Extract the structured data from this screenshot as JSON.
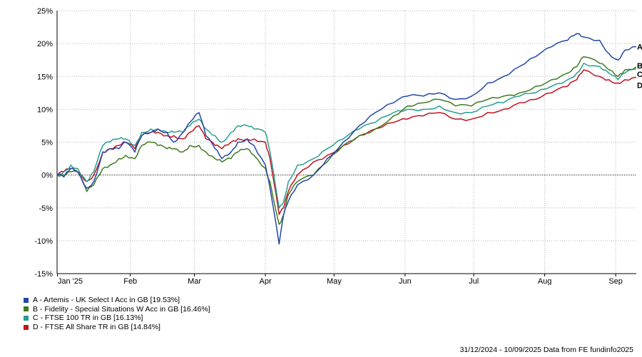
{
  "chart_data": {
    "type": "line",
    "ylim": [
      -15,
      25
    ],
    "y_ticks": [
      -15,
      -10,
      -5,
      0,
      5,
      10,
      15,
      20,
      25
    ],
    "y_tick_labels": [
      "-15%",
      "-10%",
      "-5%",
      "0%",
      "5%",
      "10%",
      "15%",
      "20%",
      "25%"
    ],
    "x_tick_labels": [
      "Jan '25",
      "Feb",
      "Mar",
      "Apr",
      "May",
      "Jun",
      "Jul",
      "Aug",
      "Sep"
    ],
    "x_tick_dates": [
      "2024-12-31",
      "2025-02-01",
      "2025-03-01",
      "2025-04-01",
      "2025-05-01",
      "2025-06-01",
      "2025-07-01",
      "2025-08-01",
      "2025-09-01"
    ],
    "x_range": [
      "2024-12-31",
      "2025-09-10"
    ],
    "grid": true,
    "zero_line": "dotted",
    "series": [
      {
        "name": "A - Artemis - UK Select I Acc in GB [19.53%]",
        "end_label": "A",
        "color": "#2347a8",
        "points": [
          [
            "2024-12-31",
            0
          ],
          [
            "2025-01-03",
            -0.3
          ],
          [
            "2025-01-06",
            1
          ],
          [
            "2025-01-09",
            0.5
          ],
          [
            "2025-01-13",
            -2
          ],
          [
            "2025-01-16",
            -1
          ],
          [
            "2025-01-20",
            3.5
          ],
          [
            "2025-01-23",
            4
          ],
          [
            "2025-01-27",
            4
          ],
          [
            "2025-01-30",
            5
          ],
          [
            "2025-02-03",
            3.5
          ],
          [
            "2025-02-06",
            6
          ],
          [
            "2025-02-10",
            6.5
          ],
          [
            "2025-02-13",
            7
          ],
          [
            "2025-02-17",
            6.5
          ],
          [
            "2025-02-20",
            5
          ],
          [
            "2025-02-24",
            6.5
          ],
          [
            "2025-02-27",
            8
          ],
          [
            "2025-03-03",
            9.5
          ],
          [
            "2025-03-06",
            6
          ],
          [
            "2025-03-10",
            4
          ],
          [
            "2025-03-13",
            2.5
          ],
          [
            "2025-03-17",
            3.5
          ],
          [
            "2025-03-20",
            5
          ],
          [
            "2025-03-24",
            5.5
          ],
          [
            "2025-03-27",
            4.5
          ],
          [
            "2025-04-01",
            1.5
          ],
          [
            "2025-04-03",
            -2
          ],
          [
            "2025-04-07",
            -10.5
          ],
          [
            "2025-04-09",
            -6
          ],
          [
            "2025-04-11",
            -4
          ],
          [
            "2025-04-15",
            -1.5
          ],
          [
            "2025-04-22",
            0
          ],
          [
            "2025-04-28",
            2.5
          ],
          [
            "2025-05-05",
            5
          ],
          [
            "2025-05-12",
            7.5
          ],
          [
            "2025-05-19",
            9.5
          ],
          [
            "2025-05-27",
            11
          ],
          [
            "2025-06-02",
            12
          ],
          [
            "2025-06-09",
            12
          ],
          [
            "2025-06-16",
            12.5
          ],
          [
            "2025-06-23",
            11.5
          ],
          [
            "2025-06-30",
            12
          ],
          [
            "2025-07-07",
            14
          ],
          [
            "2025-07-14",
            15
          ],
          [
            "2025-07-21",
            16.5
          ],
          [
            "2025-07-28",
            18
          ],
          [
            "2025-08-04",
            19.5
          ],
          [
            "2025-08-11",
            20.5
          ],
          [
            "2025-08-15",
            21.5
          ],
          [
            "2025-08-18",
            21
          ],
          [
            "2025-08-25",
            20.5
          ],
          [
            "2025-08-29",
            18.5
          ],
          [
            "2025-09-02",
            17.5
          ],
          [
            "2025-09-05",
            19
          ],
          [
            "2025-09-10",
            19.53
          ]
        ]
      },
      {
        "name": "B - Fidelity - Special Situations W Acc in GB [16.46%]",
        "end_label": "B",
        "color": "#3f7a1e",
        "points": [
          [
            "2024-12-31",
            0
          ],
          [
            "2025-01-03",
            0
          ],
          [
            "2025-01-06",
            0.5
          ],
          [
            "2025-01-09",
            0.5
          ],
          [
            "2025-01-13",
            -2.5
          ],
          [
            "2025-01-16",
            -1.5
          ],
          [
            "2025-01-20",
            1
          ],
          [
            "2025-01-23",
            1.5
          ],
          [
            "2025-01-27",
            2.5
          ],
          [
            "2025-01-30",
            3
          ],
          [
            "2025-02-03",
            2.5
          ],
          [
            "2025-02-06",
            4.5
          ],
          [
            "2025-02-10",
            5
          ],
          [
            "2025-02-13",
            4.5
          ],
          [
            "2025-02-17",
            4
          ],
          [
            "2025-02-20",
            4
          ],
          [
            "2025-02-24",
            3.5
          ],
          [
            "2025-02-27",
            4.5
          ],
          [
            "2025-03-03",
            4.5
          ],
          [
            "2025-03-06",
            3.5
          ],
          [
            "2025-03-10",
            2.5
          ],
          [
            "2025-03-13",
            2
          ],
          [
            "2025-03-17",
            2.5
          ],
          [
            "2025-03-20",
            3.5
          ],
          [
            "2025-03-24",
            4
          ],
          [
            "2025-03-27",
            3
          ],
          [
            "2025-04-01",
            1
          ],
          [
            "2025-04-03",
            -1
          ],
          [
            "2025-04-07",
            -7.5
          ],
          [
            "2025-04-09",
            -6
          ],
          [
            "2025-04-11",
            -3
          ],
          [
            "2025-04-15",
            -1
          ],
          [
            "2025-04-22",
            0
          ],
          [
            "2025-04-28",
            2
          ],
          [
            "2025-05-05",
            4.5
          ],
          [
            "2025-05-12",
            6
          ],
          [
            "2025-05-19",
            7
          ],
          [
            "2025-05-27",
            9
          ],
          [
            "2025-06-02",
            10.5
          ],
          [
            "2025-06-09",
            11
          ],
          [
            "2025-06-16",
            11.5
          ],
          [
            "2025-06-23",
            10.5
          ],
          [
            "2025-06-30",
            10.5
          ],
          [
            "2025-07-07",
            11.5
          ],
          [
            "2025-07-14",
            12
          ],
          [
            "2025-07-21",
            12.5
          ],
          [
            "2025-07-28",
            13.5
          ],
          [
            "2025-08-04",
            14.5
          ],
          [
            "2025-08-11",
            15.5
          ],
          [
            "2025-08-15",
            16.5
          ],
          [
            "2025-08-18",
            18
          ],
          [
            "2025-08-25",
            17
          ],
          [
            "2025-08-29",
            16
          ],
          [
            "2025-09-02",
            15
          ],
          [
            "2025-09-05",
            16
          ],
          [
            "2025-09-10",
            16.46
          ]
        ]
      },
      {
        "name": "C - FTSE 100 TR in GB [16.13%]",
        "end_label": "C",
        "color": "#2a9d8f",
        "points": [
          [
            "2024-12-31",
            0
          ],
          [
            "2025-01-03",
            0.5
          ],
          [
            "2025-01-06",
            1.5
          ],
          [
            "2025-01-09",
            1
          ],
          [
            "2025-01-13",
            -1
          ],
          [
            "2025-01-16",
            0.5
          ],
          [
            "2025-01-20",
            4.5
          ],
          [
            "2025-01-23",
            5
          ],
          [
            "2025-01-27",
            5.5
          ],
          [
            "2025-01-30",
            5.5
          ],
          [
            "2025-02-03",
            4.5
          ],
          [
            "2025-02-06",
            6.5
          ],
          [
            "2025-02-10",
            7
          ],
          [
            "2025-02-13",
            7
          ],
          [
            "2025-02-17",
            6.5
          ],
          [
            "2025-02-20",
            6.5
          ],
          [
            "2025-02-24",
            6.5
          ],
          [
            "2025-02-27",
            7.5
          ],
          [
            "2025-03-03",
            8.5
          ],
          [
            "2025-03-06",
            7
          ],
          [
            "2025-03-10",
            6
          ],
          [
            "2025-03-13",
            5
          ],
          [
            "2025-03-17",
            6.5
          ],
          [
            "2025-03-20",
            7.5
          ],
          [
            "2025-03-24",
            7.5
          ],
          [
            "2025-03-27",
            7
          ],
          [
            "2025-04-01",
            6.5
          ],
          [
            "2025-04-03",
            3.5
          ],
          [
            "2025-04-07",
            -5
          ],
          [
            "2025-04-09",
            -4
          ],
          [
            "2025-04-11",
            -1
          ],
          [
            "2025-04-15",
            1.5
          ],
          [
            "2025-04-22",
            2.5
          ],
          [
            "2025-04-28",
            4
          ],
          [
            "2025-05-05",
            5.5
          ],
          [
            "2025-05-12",
            7
          ],
          [
            "2025-05-19",
            8
          ],
          [
            "2025-05-27",
            9.5
          ],
          [
            "2025-06-02",
            10
          ],
          [
            "2025-06-09",
            10
          ],
          [
            "2025-06-16",
            10.5
          ],
          [
            "2025-06-23",
            9.5
          ],
          [
            "2025-06-30",
            9.5
          ],
          [
            "2025-07-07",
            10.5
          ],
          [
            "2025-07-14",
            11
          ],
          [
            "2025-07-21",
            12
          ],
          [
            "2025-07-28",
            12.5
          ],
          [
            "2025-08-04",
            13.5
          ],
          [
            "2025-08-11",
            14.5
          ],
          [
            "2025-08-15",
            15.5
          ],
          [
            "2025-08-18",
            17
          ],
          [
            "2025-08-25",
            16.5
          ],
          [
            "2025-08-29",
            15.5
          ],
          [
            "2025-09-02",
            14.5
          ],
          [
            "2025-09-05",
            15.5
          ],
          [
            "2025-09-10",
            16.13
          ]
        ]
      },
      {
        "name": "D - FTSE All Share TR in GB [14.84%]",
        "end_label": "D",
        "color": "#c0141e",
        "points": [
          [
            "2024-12-31",
            0
          ],
          [
            "2025-01-03",
            0.5
          ],
          [
            "2025-01-06",
            1
          ],
          [
            "2025-01-09",
            0.5
          ],
          [
            "2025-01-13",
            -1
          ],
          [
            "2025-01-16",
            0
          ],
          [
            "2025-01-20",
            3.5
          ],
          [
            "2025-01-23",
            4
          ],
          [
            "2025-01-27",
            4.5
          ],
          [
            "2025-01-30",
            5
          ],
          [
            "2025-02-03",
            4
          ],
          [
            "2025-02-06",
            6
          ],
          [
            "2025-02-10",
            6.5
          ],
          [
            "2025-02-13",
            6.5
          ],
          [
            "2025-02-17",
            6
          ],
          [
            "2025-02-20",
            6
          ],
          [
            "2025-02-24",
            5.5
          ],
          [
            "2025-02-27",
            6.5
          ],
          [
            "2025-03-03",
            7.5
          ],
          [
            "2025-03-06",
            5.5
          ],
          [
            "2025-03-10",
            4.5
          ],
          [
            "2025-03-13",
            4
          ],
          [
            "2025-03-17",
            5
          ],
          [
            "2025-03-20",
            5.5
          ],
          [
            "2025-03-24",
            5.5
          ],
          [
            "2025-03-27",
            5.5
          ],
          [
            "2025-04-01",
            5
          ],
          [
            "2025-04-03",
            2.5
          ],
          [
            "2025-04-07",
            -6
          ],
          [
            "2025-04-09",
            -5
          ],
          [
            "2025-04-11",
            -2.5
          ],
          [
            "2025-04-15",
            0
          ],
          [
            "2025-04-22",
            2
          ],
          [
            "2025-04-28",
            3
          ],
          [
            "2025-05-05",
            4.5
          ],
          [
            "2025-05-12",
            6
          ],
          [
            "2025-05-19",
            7
          ],
          [
            "2025-05-27",
            8
          ],
          [
            "2025-06-02",
            8.5
          ],
          [
            "2025-06-09",
            9
          ],
          [
            "2025-06-16",
            9.5
          ],
          [
            "2025-06-23",
            8.5
          ],
          [
            "2025-06-30",
            8.5
          ],
          [
            "2025-07-07",
            9.5
          ],
          [
            "2025-07-14",
            10
          ],
          [
            "2025-07-21",
            11
          ],
          [
            "2025-07-28",
            11.5
          ],
          [
            "2025-08-04",
            12.5
          ],
          [
            "2025-08-11",
            13.5
          ],
          [
            "2025-08-15",
            14.5
          ],
          [
            "2025-08-18",
            16
          ],
          [
            "2025-08-25",
            15
          ],
          [
            "2025-08-29",
            14.5
          ],
          [
            "2025-09-02",
            14
          ],
          [
            "2025-09-05",
            14.5
          ],
          [
            "2025-09-10",
            14.84
          ]
        ]
      }
    ]
  },
  "legend": [
    {
      "label": "A - Artemis - UK Select I Acc in GB [19.53%]",
      "color": "#2347a8"
    },
    {
      "label": "B - Fidelity - Special Situations W Acc in GB [16.46%]",
      "color": "#3f7a1e"
    },
    {
      "label": "C - FTSE 100 TR in GB [16.13%]",
      "color": "#2a9d8f"
    },
    {
      "label": "D - FTSE All Share TR in GB [14.84%]",
      "color": "#c0141e"
    }
  ],
  "footer": "31/12/2024 - 10/09/2025 Data from FE fundinfo2025"
}
